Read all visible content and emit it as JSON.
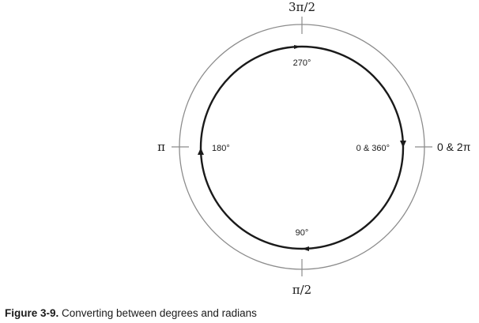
{
  "diagram": {
    "radian_labels": {
      "top": "3π/2",
      "right": "0 & 2π",
      "bottom": "π/2",
      "left": "π"
    },
    "degree_labels": {
      "top": "270°",
      "right": "0 & 360°",
      "bottom": "90°",
      "left": "180°"
    },
    "colors": {
      "outer_circle": "#8c8c8c",
      "inner_circle": "#1a1a1a",
      "tick": "#8c8c8c"
    }
  },
  "caption": {
    "figure_number": "Figure 3-9.",
    "text": " Converting between degrees and radians"
  }
}
